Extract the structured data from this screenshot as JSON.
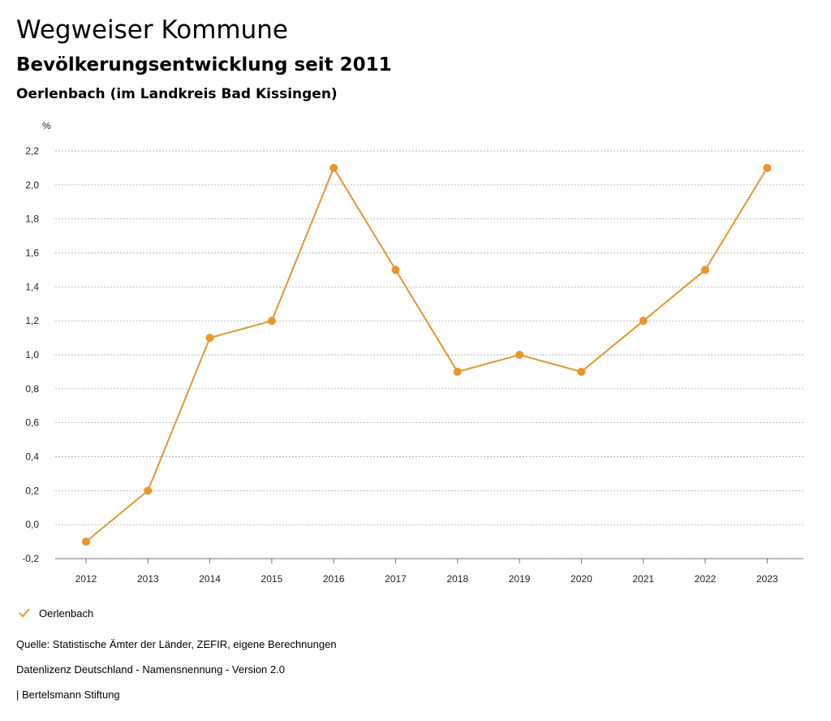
{
  "header": {
    "title": "Wegweiser Kommune",
    "subtitle": "Bevölkerungsentwicklung seit 2011",
    "place": "Oerlenbach (im Landkreis Bad Kissingen)"
  },
  "chart_data": {
    "type": "line",
    "ylabel": "%",
    "xlabel": "",
    "ylim": [
      -0.2,
      2.2
    ],
    "yticks": [
      -0.2,
      0.0,
      0.2,
      0.4,
      0.6,
      0.8,
      1.0,
      1.2,
      1.4,
      1.6,
      1.8,
      2.0,
      2.2
    ],
    "ytick_labels": [
      "-0,2",
      "0,0",
      "0,2",
      "0,4",
      "0,6",
      "0,8",
      "1,0",
      "1,2",
      "1,4",
      "1,6",
      "1,8",
      "2,0",
      "2,2"
    ],
    "categories": [
      "2012",
      "2013",
      "2014",
      "2015",
      "2016",
      "2017",
      "2018",
      "2019",
      "2020",
      "2021",
      "2022",
      "2023"
    ],
    "grid": true,
    "legend_position": "bottom-left",
    "series": [
      {
        "name": "Oerlenbach",
        "color": "#e8952e",
        "values": [
          -0.1,
          0.2,
          1.1,
          1.2,
          2.1,
          1.5,
          0.9,
          1.0,
          0.9,
          1.2,
          1.5,
          2.1
        ]
      }
    ]
  },
  "legend": {
    "label": "Oerlenbach",
    "icon": "check-icon"
  },
  "footer": {
    "source": "Quelle: Statistische Ämter der Länder, ZEFIR, eigene Berechnungen",
    "license": "Datenlizenz Deutschland - Namensnennung - Version 2.0",
    "publisher": "| Bertelsmann Stiftung"
  }
}
